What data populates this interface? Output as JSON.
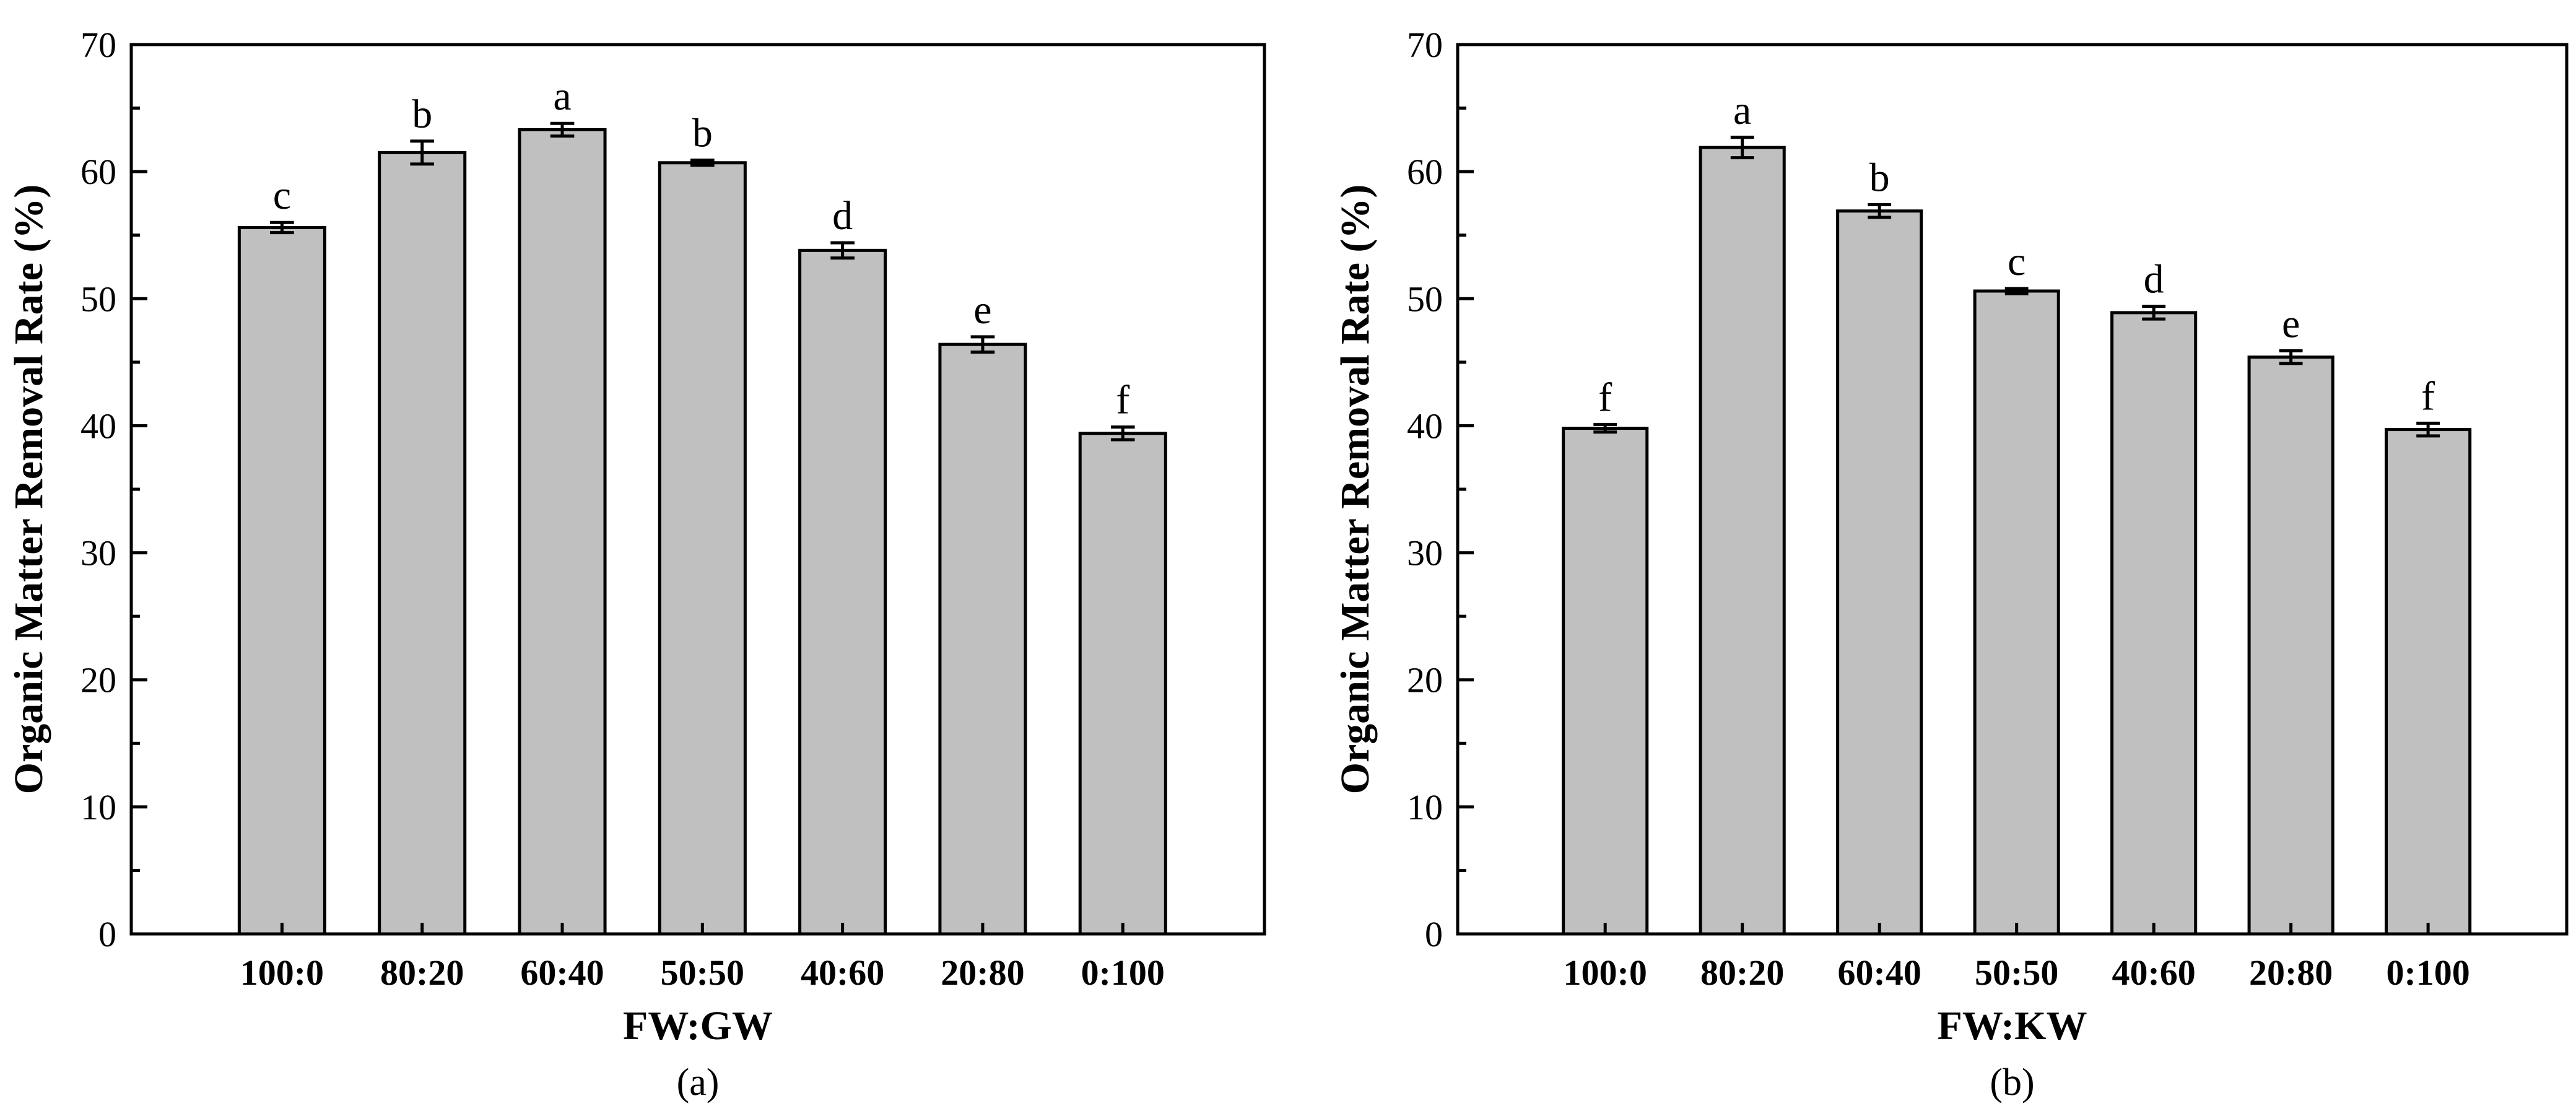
{
  "chart_data": [
    {
      "type": "bar",
      "panel_label": "(a)",
      "xlabel": "FW:GW",
      "ylabel": "Organic Matter Removal Rate (%)",
      "ylim": [
        0,
        70
      ],
      "yticks": [
        "0",
        "10",
        "20",
        "30",
        "40",
        "50",
        "60",
        "70"
      ],
      "categories": [
        "100:0",
        "80:20",
        "60:40",
        "50:50",
        "40:60",
        "20:80",
        "0:100"
      ],
      "values": [
        55.6,
        61.5,
        63.3,
        60.7,
        53.8,
        46.4,
        39.4
      ],
      "errors": [
        0.4,
        0.9,
        0.5,
        0.2,
        0.6,
        0.6,
        0.5
      ],
      "letters": [
        "c",
        "b",
        "a",
        "b",
        "d",
        "e",
        "f"
      ],
      "bar_color": "#c0c0c0",
      "grid": false
    },
    {
      "type": "bar",
      "panel_label": "(b)",
      "xlabel": "FW:KW",
      "ylabel": "Organic Matter Removal Rate (%)",
      "ylim": [
        0,
        70
      ],
      "yticks": [
        "0",
        "10",
        "20",
        "30",
        "40",
        "50",
        "60",
        "70"
      ],
      "categories": [
        "100:0",
        "80:20",
        "60:40",
        "50:50",
        "40:60",
        "20:80",
        "0:100"
      ],
      "values": [
        39.8,
        61.9,
        56.9,
        50.6,
        48.9,
        45.4,
        39.7
      ],
      "errors": [
        0.3,
        0.8,
        0.5,
        0.2,
        0.5,
        0.5,
        0.5
      ],
      "letters": [
        "f",
        "a",
        "b",
        "c",
        "d",
        "e",
        "f"
      ],
      "bar_color": "#c0c0c0",
      "grid": false
    }
  ]
}
